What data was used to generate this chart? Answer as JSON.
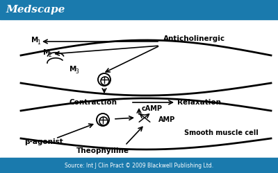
{
  "header_color": "#1a7aad",
  "header_text": "Medscape",
  "header_text_color": "#ffffff",
  "footer_color": "#1a7aad",
  "footer_text": "Source: Int J Clin Pract © 2009 Blackwell Publishing Ltd.",
  "footer_text_color": "#ffffff",
  "bg_color": "#ffffff",
  "labels": {
    "anticholinergic": "Anticholinergic",
    "m1": "M",
    "m2": "M",
    "m3": "M",
    "contraction": "Contraction",
    "relaxation": "Relaxation",
    "camp": "cAMP",
    "amp": "AMP",
    "beta_agonist": "β-agonist",
    "theophylline": "Theophylline",
    "smooth_muscle": "Smooth muscle cell"
  },
  "wave_color": "#000000",
  "arrow_color": "#000000",
  "text_color": "#000000"
}
